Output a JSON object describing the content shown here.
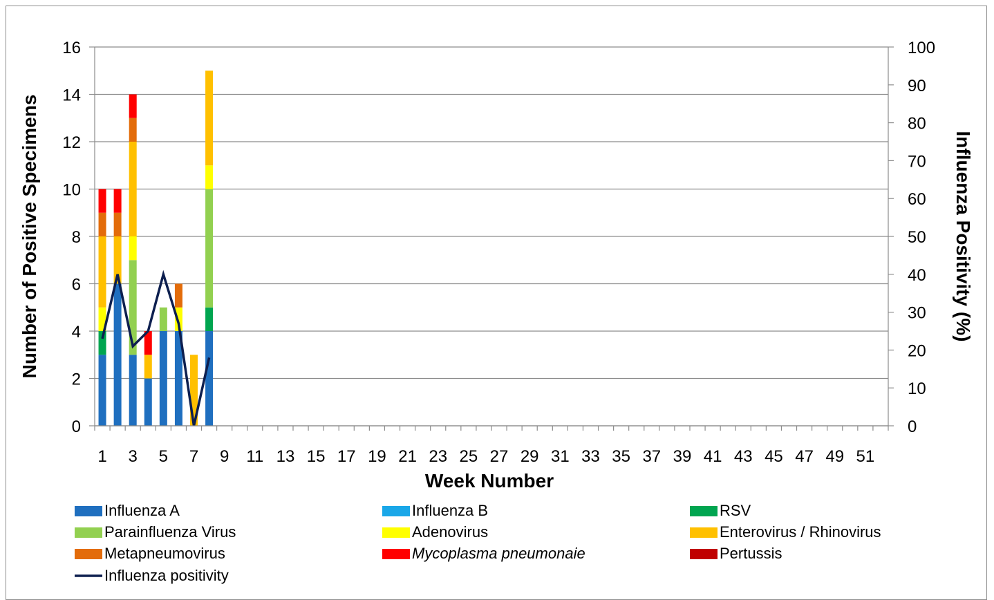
{
  "chart_data": {
    "type": "bar",
    "subtype": "stacked-bar-with-line",
    "xlabel": "Week Number",
    "ylabel": "Number of Positive Specimens",
    "y2label": "Influenza Positivity (%)",
    "ylim": [
      0,
      16
    ],
    "y2lim": [
      0,
      100
    ],
    "yticks": [
      "0",
      "2",
      "4",
      "6",
      "8",
      "10",
      "12",
      "14",
      "16"
    ],
    "y2ticks": [
      "0",
      "10",
      "20",
      "30",
      "40",
      "50",
      "60",
      "70",
      "80",
      "90",
      "100"
    ],
    "weeks": 52,
    "xticks": [
      "1",
      "3",
      "5",
      "7",
      "9",
      "11",
      "13",
      "15",
      "17",
      "19",
      "21",
      "23",
      "25",
      "27",
      "29",
      "31",
      "33",
      "35",
      "37",
      "39",
      "41",
      "43",
      "45",
      "47",
      "49",
      "51"
    ],
    "grid": true,
    "legend_position": "bottom",
    "categories": [
      1,
      2,
      3,
      4,
      5,
      6,
      7,
      8
    ],
    "series": [
      {
        "name": "Influenza A",
        "color": "#1f6fbf",
        "values": [
          3,
          6,
          3,
          2,
          4,
          4,
          0,
          4
        ]
      },
      {
        "name": "Influenza B",
        "color": "#1aa7e8",
        "values": [
          0,
          0,
          0,
          0,
          0,
          0,
          0,
          0
        ]
      },
      {
        "name": "RSV",
        "color": "#00a550",
        "values": [
          1,
          0,
          0,
          0,
          0,
          0,
          0,
          1
        ]
      },
      {
        "name": "Parainfluenza Virus",
        "color": "#92d050",
        "values": [
          0,
          0,
          4,
          0,
          1,
          0,
          0,
          5
        ]
      },
      {
        "name": "Adenovirus",
        "color": "#ffff00",
        "values": [
          1,
          0,
          1,
          0,
          0,
          1,
          0,
          1
        ]
      },
      {
        "name": "Enterovirus / Rhinovirus",
        "color": "#ffc000",
        "values": [
          3,
          2,
          4,
          1,
          0,
          0,
          3,
          4
        ]
      },
      {
        "name": "Metapneumovirus",
        "color": "#e36c0a",
        "values": [
          1,
          1,
          1,
          0,
          0,
          1,
          0,
          0
        ]
      },
      {
        "name": "Mycoplasma pneumonaie",
        "color": "#ff0000",
        "italic": true,
        "values": [
          1,
          1,
          1,
          1,
          0,
          0,
          0,
          0
        ]
      },
      {
        "name": "Pertussis",
        "color": "#c00000",
        "values": [
          0,
          0,
          0,
          0,
          0,
          0,
          0,
          0
        ]
      }
    ],
    "line": {
      "name": "Influenza positivity",
      "color": "#0d1f4f",
      "axis": "right",
      "x": [
        1,
        2,
        3,
        4,
        5,
        6,
        7,
        8
      ],
      "values": [
        23,
        40,
        21,
        25,
        40,
        27,
        0,
        18
      ]
    }
  }
}
